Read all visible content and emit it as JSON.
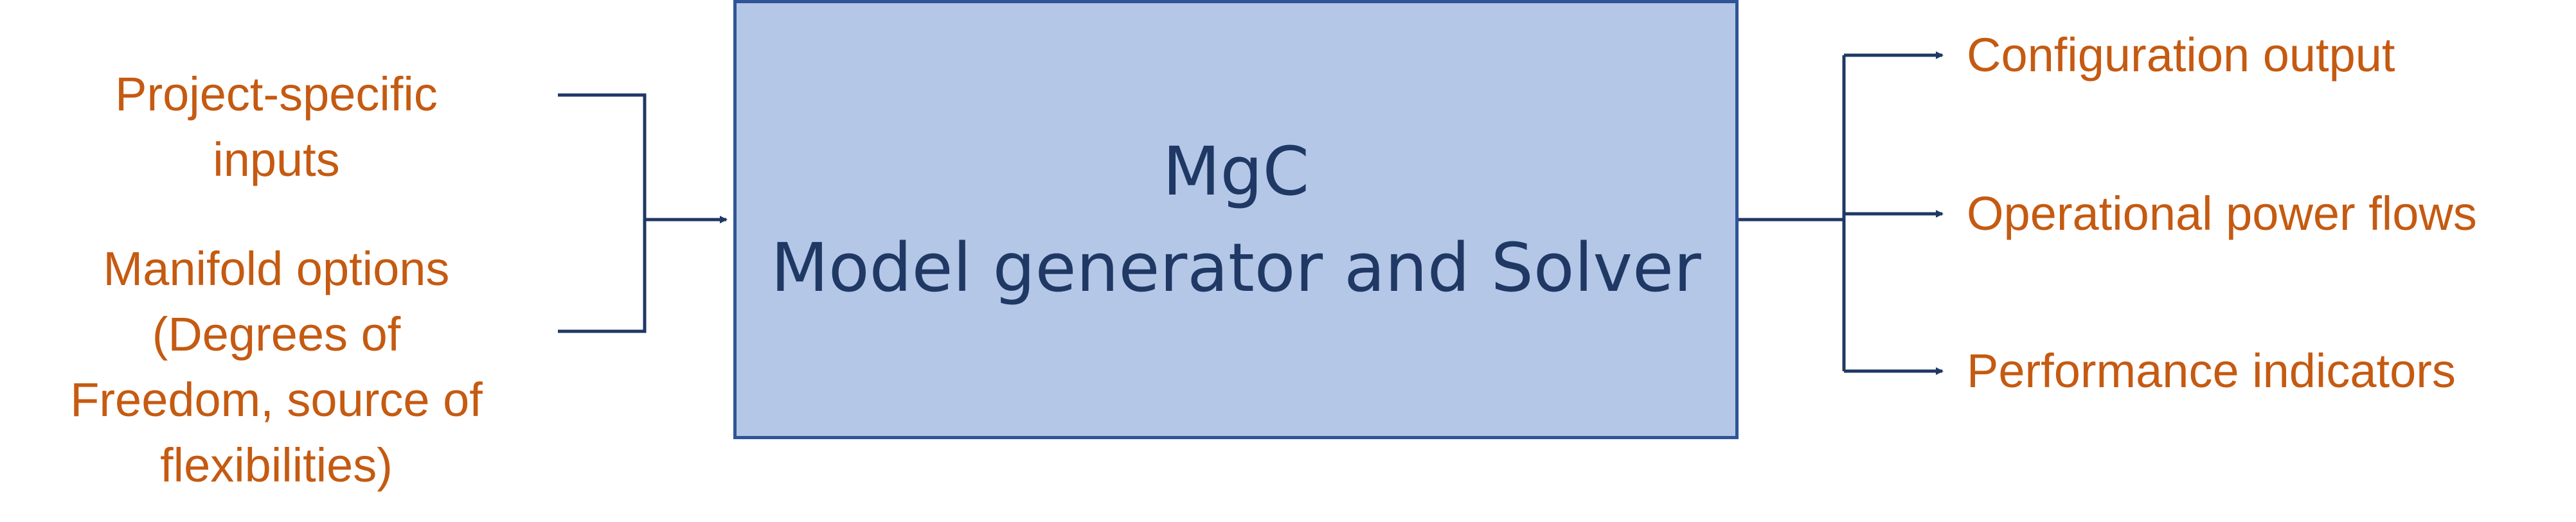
{
  "diagram": {
    "inputs": [
      {
        "lines": [
          "Project-specific",
          "inputs"
        ]
      },
      {
        "lines": [
          "Manifold options",
          "(Degrees of",
          "Freedom, source of",
          "flexibilities)"
        ]
      }
    ],
    "main_box": {
      "title": "MgC",
      "subtitle": "Model generator and Solver"
    },
    "outputs": [
      "Configuration output",
      "Operational power flows",
      "Performance indicators"
    ]
  },
  "colors": {
    "label_text": "#C55A11",
    "box_fill": "#B4C7E7",
    "box_border": "#2F5597",
    "box_text": "#1F3864",
    "connector": "#1F3864"
  }
}
